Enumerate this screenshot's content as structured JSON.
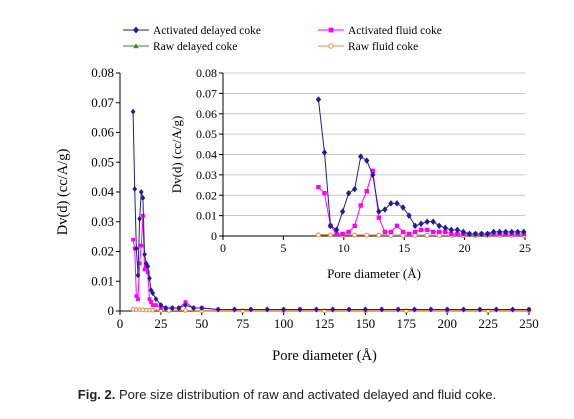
{
  "caption": {
    "label": "Fig. 2.",
    "text": "Pore size distribution of raw and activated delayed and fluid coke."
  },
  "legend": [
    {
      "name": "Activated delayed coke",
      "color": "#1f1f8f",
      "marker": "diamond"
    },
    {
      "name": "Activated fluid coke",
      "color": "#ff00ff",
      "marker": "square"
    },
    {
      "name": "Raw delayed coke",
      "color": "#2e8b2e",
      "marker": "triangle"
    },
    {
      "name": "Raw fluid coke",
      "color": "#f08a4b",
      "marker": "circle"
    }
  ],
  "chart_data": [
    {
      "type": "line",
      "panel": "main",
      "xlabel": "Pore diameter (Å)",
      "ylabel": "Dv(d) (cc/A/g)",
      "xlim": [
        0,
        250
      ],
      "ylim": [
        0,
        0.08
      ],
      "xticks": [
        "0",
        "25",
        "50",
        "75",
        "100",
        "125",
        "150",
        "175",
        "200",
        "225",
        "250"
      ],
      "yticks": [
        "0",
        "0.01",
        "0.02",
        "0.03",
        "0.04",
        "0.05",
        "0.06",
        "0.07",
        "0.08"
      ],
      "series": [
        {
          "name": "Activated delayed coke",
          "x": [
            8,
            9,
            10,
            11,
            12,
            13,
            14,
            15,
            16,
            17,
            18,
            19,
            20,
            22,
            25,
            28,
            32,
            36,
            40,
            45,
            50,
            60,
            70,
            80,
            90,
            100,
            110,
            120,
            130,
            140,
            150,
            160,
            170,
            180,
            190,
            200,
            210,
            220,
            230,
            240,
            250
          ],
          "y": [
            0.067,
            0.041,
            0.021,
            0.012,
            0.031,
            0.04,
            0.038,
            0.019,
            0.016,
            0.015,
            0.011,
            0.007,
            0.006,
            0.004,
            0.002,
            0.001,
            0.001,
            0.001,
            0.002,
            0.001,
            0.001,
            0.0005,
            0.0005,
            0.0005,
            0.0005,
            0.0005,
            0.0005,
            0.0005,
            0.0005,
            0.0005,
            0.0005,
            0.0005,
            0.0005,
            0.0005,
            0.0005,
            0.0005,
            0.0005,
            0.0005,
            0.0005,
            0.0005,
            0.0005
          ]
        },
        {
          "name": "Activated fluid coke",
          "x": [
            8,
            9,
            10,
            11,
            12,
            13,
            14,
            15,
            16,
            17,
            18,
            19,
            20,
            22,
            25,
            28,
            32,
            36,
            40,
            45,
            50,
            60,
            70,
            80,
            90,
            100,
            110,
            120,
            130,
            140,
            150,
            160,
            170,
            180,
            190,
            200,
            210,
            220,
            230,
            240,
            250
          ],
          "y": [
            0.024,
            0.021,
            0.005,
            0.004,
            0.016,
            0.022,
            0.032,
            0.014,
            0.015,
            0.013,
            0.004,
            0.003,
            0.002,
            0.002,
            0.001,
            0.001,
            0.001,
            0.001,
            0.003,
            0.001,
            0.001,
            0.0005,
            0.0005,
            0.0005,
            0.0005,
            0.0005,
            0.0005,
            0.0005,
            0.0005,
            0.0005,
            0.0005,
            0.0005,
            0.0005,
            0.0005,
            0.0005,
            0.0005,
            0.0005,
            0.0005,
            0.0005,
            0.0005,
            0.0005
          ]
        },
        {
          "name": "Raw delayed coke",
          "x": [
            8,
            10,
            12,
            14,
            16,
            18,
            20,
            25,
            30,
            40,
            50,
            75,
            100,
            125,
            150,
            175,
            200,
            225,
            250
          ],
          "y": [
            0.0008,
            0.0006,
            0.0005,
            0.0005,
            0.0004,
            0.0004,
            0.0003,
            0.0003,
            0.0002,
            0.0002,
            0.0001,
            0.0001,
            0.0001,
            0.0001,
            0.0001,
            0.0001,
            0.0001,
            0.0001,
            0.0001
          ]
        },
        {
          "name": "Raw fluid coke",
          "x": [
            8,
            10,
            12,
            14,
            16,
            18,
            20,
            25,
            30,
            40,
            50,
            75,
            100,
            125,
            150,
            175,
            200,
            225,
            250
          ],
          "y": [
            0.0006,
            0.0005,
            0.0004,
            0.0004,
            0.0003,
            0.0003,
            0.0003,
            0.0002,
            0.0002,
            0.0002,
            0.0001,
            0.0001,
            0.0001,
            0.0001,
            0.0001,
            0.0001,
            0.0001,
            0.0001,
            0.0001
          ]
        }
      ]
    },
    {
      "type": "line",
      "panel": "inset",
      "xlabel": "Pore diameter (Å)",
      "ylabel": "Dv(d) (cc/A/g)",
      "xlim": [
        0,
        25
      ],
      "ylim": [
        0,
        0.08
      ],
      "grid": "horizontal",
      "xticks": [
        "0",
        "5",
        "10",
        "15",
        "20",
        "25"
      ],
      "yticks": [
        "0",
        "0.01",
        "0.02",
        "0.03",
        "0.04",
        "0.05",
        "0.06",
        "0.07",
        "0.08"
      ],
      "series": [
        {
          "name": "Activated delayed coke",
          "x": [
            7.9,
            8.4,
            8.9,
            9.4,
            9.9,
            10.4,
            10.9,
            11.4,
            11.9,
            12.4,
            12.9,
            13.4,
            13.9,
            14.4,
            14.9,
            15.4,
            15.9,
            16.4,
            16.9,
            17.4,
            17.9,
            18.4,
            18.9,
            19.4,
            19.9,
            20.4,
            20.9,
            21.4,
            21.9,
            22.4,
            22.9,
            23.4,
            23.9,
            24.4,
            24.9
          ],
          "y": [
            0.067,
            0.041,
            0.005,
            0.003,
            0.012,
            0.021,
            0.023,
            0.039,
            0.037,
            0.03,
            0.012,
            0.013,
            0.016,
            0.016,
            0.014,
            0.01,
            0.005,
            0.006,
            0.007,
            0.007,
            0.005,
            0.004,
            0.003,
            0.003,
            0.002,
            0.001,
            0.001,
            0.001,
            0.001,
            0.002,
            0.002,
            0.002,
            0.002,
            0.002,
            0.002
          ]
        },
        {
          "name": "Activated fluid coke",
          "x": [
            7.9,
            8.4,
            8.9,
            9.4,
            9.9,
            10.4,
            10.9,
            11.4,
            11.9,
            12.4,
            12.9,
            13.4,
            13.9,
            14.4,
            14.9,
            15.4,
            15.9,
            16.4,
            16.9,
            17.4,
            17.9,
            18.4,
            18.9,
            19.4,
            19.9,
            20.4,
            20.9,
            21.4,
            21.9,
            22.4,
            22.9,
            23.4,
            23.9,
            24.4,
            24.9
          ],
          "y": [
            0.024,
            0.021,
            0.005,
            0.001,
            0.001,
            0.002,
            0.005,
            0.015,
            0.022,
            0.032,
            0.009,
            0.002,
            0.002,
            0.005,
            0.002,
            0.001,
            0.002,
            0.003,
            0.003,
            0.002,
            0.002,
            0.002,
            0.001,
            0.001,
            0.001,
            0.001,
            0.001,
            0.001,
            0.001,
            0.001,
            0.001,
            0.001,
            0.001,
            0.001,
            0.001
          ]
        },
        {
          "name": "Raw delayed coke",
          "x": [
            7.9,
            8.9,
            9.9,
            10.9,
            11.9,
            12.9,
            13.9,
            14.9,
            15.9,
            16.9,
            17.9,
            18.9,
            19.9,
            20.9,
            21.9,
            22.9,
            23.9,
            24.9
          ],
          "y": [
            0.0007,
            0.0006,
            0.0006,
            0.0005,
            0.0005,
            0.0005,
            0.0004,
            0.0004,
            0.0004,
            0.0004,
            0.0003,
            0.0003,
            0.0003,
            0.0003,
            0.0003,
            0.0003,
            0.0003,
            0.0003
          ]
        },
        {
          "name": "Raw fluid coke",
          "x": [
            7.9,
            8.9,
            9.9,
            10.9,
            11.9,
            12.9,
            13.9,
            14.9,
            15.9,
            16.9,
            17.9,
            18.9,
            19.9,
            20.9,
            21.9,
            22.9,
            23.9,
            24.9
          ],
          "y": [
            0.0005,
            0.0005,
            0.0004,
            0.0004,
            0.0004,
            0.0004,
            0.0003,
            0.0003,
            0.0003,
            0.0003,
            0.0003,
            0.0003,
            0.0003,
            0.0003,
            0.0003,
            0.0003,
            0.0003,
            0.0003
          ]
        }
      ]
    }
  ]
}
